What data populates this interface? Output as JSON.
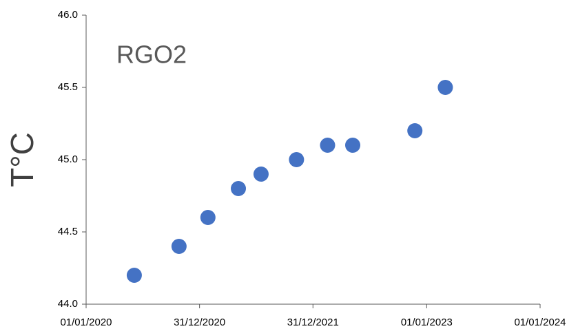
{
  "chart_data": {
    "type": "scatter",
    "title": "RGO2",
    "y_label": "T°C",
    "x": [
      "2020-06-04",
      "2020-10-26",
      "2021-01-27",
      "2021-05-05",
      "2021-07-17",
      "2021-11-08",
      "2022-02-16",
      "2022-05-08",
      "2022-11-24",
      "2023-03-02"
    ],
    "series": [
      {
        "color": "#4472c4",
        "values": [
          44.2,
          44.4,
          44.6,
          44.8,
          44.9,
          45.0,
          45.1,
          45.1,
          45.2,
          45.5
        ]
      }
    ],
    "xlim": [
      "2020-01-01",
      "2024-01-01"
    ],
    "xticks": [
      {
        "value": "2020-01-01",
        "label": "01/01/2020"
      },
      {
        "value": "2020-12-31",
        "label": "31/12/2020"
      },
      {
        "value": "2021-12-31",
        "label": "31/12/2021"
      },
      {
        "value": "2023-01-01",
        "label": "01/01/2023"
      },
      {
        "value": "2024-01-01",
        "label": "01/01/2024"
      }
    ],
    "ylim": [
      44,
      46
    ],
    "yticks": [
      {
        "value": 44,
        "label": "44.0"
      },
      44.5,
      {
        "value": 45,
        "label": "45.0"
      },
      45.5,
      {
        "value": 46,
        "label": "46.0"
      }
    ],
    "grid": false
  }
}
